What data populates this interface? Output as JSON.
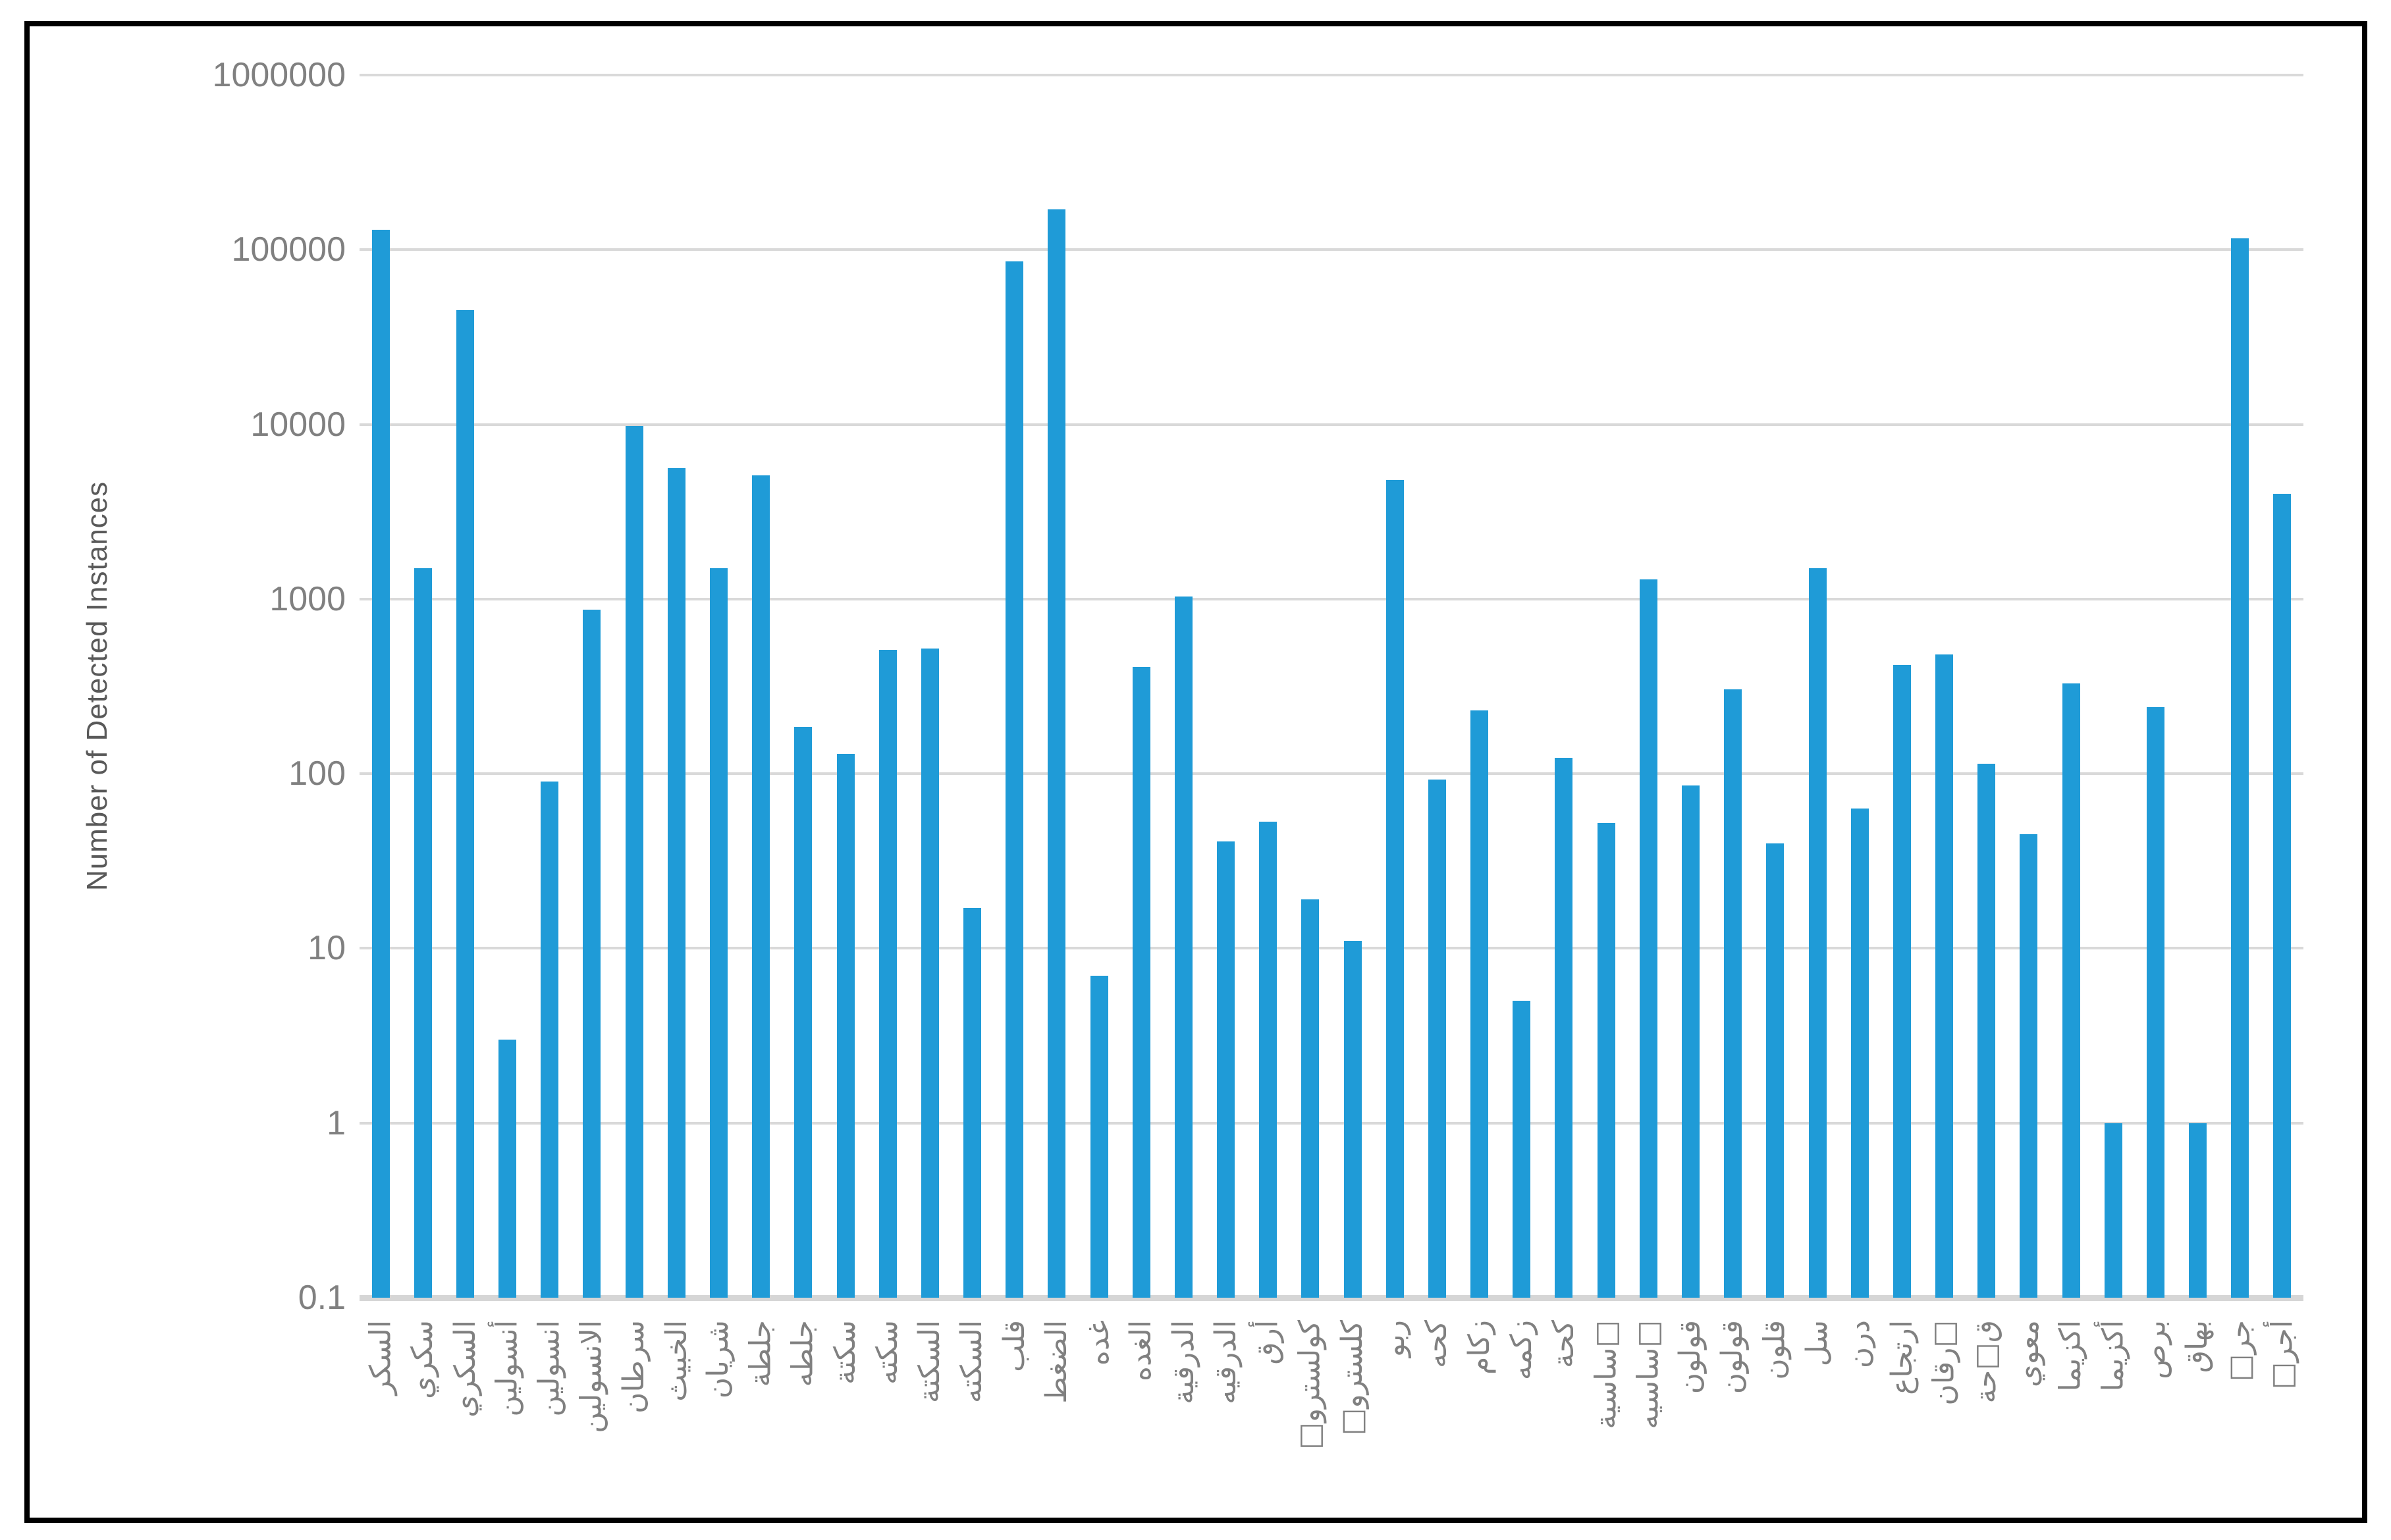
{
  "chart_data": {
    "type": "bar",
    "title": "",
    "xlabel": "",
    "ylabel": "Number of Detected Instances",
    "yscale": "log",
    "ylim": [
      0.1,
      1000000
    ],
    "ytick_labels": [
      "1000000",
      "100000",
      "10000",
      "1000",
      "100",
      "10",
      "1",
      "0.1"
    ],
    "grid": true,
    "legend": false,
    "bar_color": "#1f9bd7",
    "categories": [
      "السكر",
      "سكري",
      "السكري",
      "أنسولين",
      "انسولين",
      "الانسولين",
      "سرطان",
      "الخبيث",
      "شريان",
      "جلطة",
      "جلطه",
      "سكتة",
      "سكته",
      "السكتة",
      "السكته",
      "قلب",
      "الضغط",
      "غده",
      "الغده",
      "الدرقية",
      "الدرقيه",
      "أرق",
      "كولسترو□",
      "كلسترو□",
      "ربو",
      "كحه",
      "زكام",
      "زكمه",
      "كحة",
      "□ساسية",
      "□ساسيه",
      "قولون",
      "قولون",
      "قلون",
      "سل",
      "درن",
      "ارتجاع",
      "□رقان",
      "ق□حة",
      "معوي",
      "اكزيما",
      "أكزيما",
      "برص",
      "بهاق",
      "جر□",
      "أجر□"
    ],
    "values": [
      130000,
      1500,
      45000,
      3,
      90,
      870,
      9800,
      5600,
      1500,
      5100,
      185,
      130,
      510,
      520,
      17,
      86000,
      170000,
      7,
      410,
      1030,
      41,
      53,
      19,
      11,
      4800,
      93,
      230,
      5,
      123,
      52,
      1300,
      86,
      305,
      40,
      1500,
      63,
      420,
      480,
      114,
      45,
      330,
      1,
      240,
      1,
      116000,
      4000
    ]
  },
  "colors": {
    "bar": "#1f9bd7",
    "gridline": "#d9d9d9",
    "axis_text": "#808080",
    "title_text": "#595959",
    "border": "#000000"
  }
}
